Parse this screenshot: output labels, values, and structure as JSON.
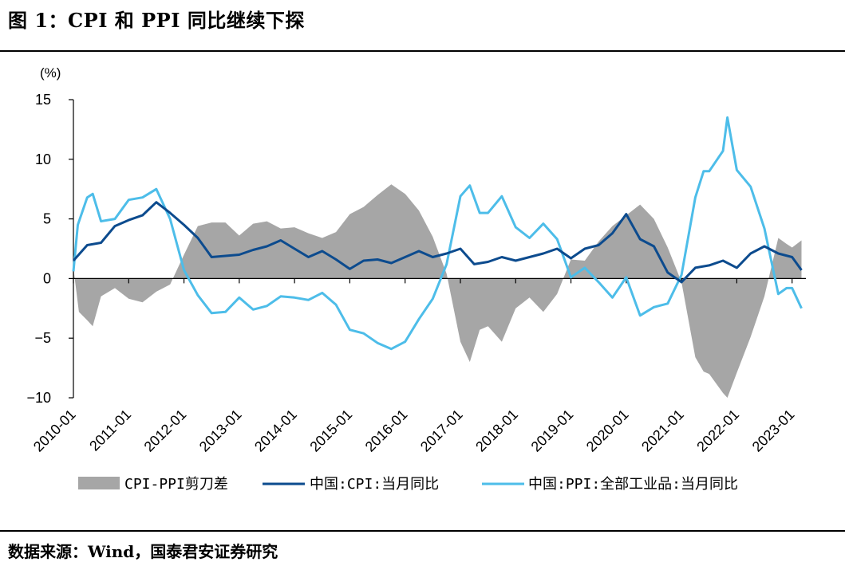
{
  "figure_title": "图 1：CPI 和 PPI 同比继续下探",
  "source_note": "数据来源：Wind，国泰君安证券研究",
  "colors": {
    "spread": "#a6a6a6",
    "cpi": "#0c4b8e",
    "ppi": "#4dbde9",
    "axis": "#000000"
  },
  "chart_data": {
    "type": "line",
    "title": "CPI 和 PPI 同比继续下探",
    "ylabel": "(%)",
    "ylim": [
      -10,
      15
    ],
    "yticks": [
      15,
      10,
      5,
      0,
      -5,
      -10
    ],
    "ytick_labels": [
      "15",
      "10",
      "5",
      "0",
      "−5",
      "−10"
    ],
    "xlim": [
      2010.0,
      2023.25
    ],
    "xticks": [
      2010,
      2011,
      2012,
      2013,
      2014,
      2015,
      2016,
      2017,
      2018,
      2019,
      2020,
      2021,
      2022,
      2023
    ],
    "xtick_labels": [
      "2010-01",
      "2011-01",
      "2012-01",
      "2013-01",
      "2014-01",
      "2015-01",
      "2016-01",
      "2017-01",
      "2018-01",
      "2019-01",
      "2020-01",
      "2021-01",
      "2022-01",
      "2023-01"
    ],
    "legend": [
      "CPI-PPI剪刀差",
      "中国:CPI:当月同比",
      "中国:PPI:全部工业品:当月同比"
    ],
    "series": [
      {
        "name": "中国:CPI:当月同比",
        "x": [
          2010.0,
          2010.25,
          2010.5,
          2010.75,
          2011.0,
          2011.25,
          2011.5,
          2011.75,
          2012.0,
          2012.25,
          2012.5,
          2012.75,
          2013.0,
          2013.25,
          2013.5,
          2013.75,
          2014.0,
          2014.25,
          2014.5,
          2014.75,
          2015.0,
          2015.25,
          2015.5,
          2015.75,
          2016.0,
          2016.25,
          2016.5,
          2016.75,
          2017.0,
          2017.25,
          2017.5,
          2017.75,
          2018.0,
          2018.25,
          2018.5,
          2018.75,
          2019.0,
          2019.25,
          2019.5,
          2019.75,
          2020.0,
          2020.25,
          2020.5,
          2020.75,
          2021.0,
          2021.25,
          2021.5,
          2021.75,
          2022.0,
          2022.25,
          2022.5,
          2022.75,
          2023.0,
          2023.17
        ],
        "values": [
          1.5,
          2.8,
          3.0,
          4.4,
          4.9,
          5.3,
          6.4,
          5.5,
          4.5,
          3.4,
          1.8,
          1.9,
          2.0,
          2.4,
          2.7,
          3.2,
          2.5,
          1.8,
          2.3,
          1.6,
          0.8,
          1.5,
          1.6,
          1.3,
          1.8,
          2.3,
          1.8,
          2.1,
          2.5,
          1.2,
          1.4,
          1.8,
          1.5,
          1.8,
          2.1,
          2.5,
          1.7,
          2.5,
          2.8,
          3.8,
          5.4,
          3.3,
          2.7,
          0.5,
          -0.3,
          0.9,
          1.1,
          1.5,
          0.9,
          2.1,
          2.7,
          2.1,
          1.8,
          0.7
        ]
      },
      {
        "name": "中国:PPI:全部工业品:当月同比",
        "x": [
          2010.0,
          2010.08,
          2010.25,
          2010.35,
          2010.5,
          2010.75,
          2011.0,
          2011.25,
          2011.5,
          2011.75,
          2012.0,
          2012.25,
          2012.5,
          2012.75,
          2013.0,
          2013.25,
          2013.5,
          2013.75,
          2014.0,
          2014.25,
          2014.5,
          2014.75,
          2015.0,
          2015.25,
          2015.5,
          2015.75,
          2016.0,
          2016.25,
          2016.5,
          2016.75,
          2017.0,
          2017.17,
          2017.35,
          2017.5,
          2017.75,
          2018.0,
          2018.25,
          2018.5,
          2018.75,
          2019.0,
          2019.25,
          2019.5,
          2019.75,
          2020.0,
          2020.25,
          2020.5,
          2020.75,
          2021.0,
          2021.25,
          2021.4,
          2021.5,
          2021.75,
          2021.83,
          2022.0,
          2022.25,
          2022.5,
          2022.75,
          2022.9,
          2023.0,
          2023.17
        ],
        "values": [
          0.6,
          4.5,
          6.8,
          7.1,
          4.8,
          5.0,
          6.6,
          6.8,
          7.5,
          5.0,
          0.7,
          -1.4,
          -2.9,
          -2.8,
          -1.6,
          -2.6,
          -2.3,
          -1.5,
          -1.6,
          -1.8,
          -1.2,
          -2.2,
          -4.3,
          -4.6,
          -5.4,
          -5.9,
          -5.3,
          -3.4,
          -1.7,
          1.2,
          6.9,
          7.8,
          5.5,
          5.5,
          6.9,
          4.3,
          3.4,
          4.6,
          3.3,
          0.1,
          0.9,
          -0.3,
          -1.6,
          0.1,
          -3.1,
          -2.4,
          -2.1,
          0.3,
          6.8,
          9.0,
          9.0,
          10.7,
          13.5,
          9.1,
          7.7,
          4.2,
          -1.3,
          -0.8,
          -0.8,
          -2.5
        ]
      },
      {
        "name": "CPI-PPI剪刀差",
        "x": [
          2010.0,
          2010.1,
          2010.25,
          2010.35,
          2010.5,
          2010.75,
          2011.0,
          2011.25,
          2011.5,
          2011.75,
          2012.0,
          2012.25,
          2012.5,
          2012.75,
          2013.0,
          2013.25,
          2013.5,
          2013.75,
          2014.0,
          2014.25,
          2014.5,
          2014.75,
          2015.0,
          2015.25,
          2015.5,
          2015.75,
          2016.0,
          2016.25,
          2016.5,
          2016.75,
          2017.0,
          2017.17,
          2017.35,
          2017.5,
          2017.75,
          2018.0,
          2018.25,
          2018.5,
          2018.75,
          2019.0,
          2019.25,
          2019.5,
          2019.75,
          2020.0,
          2020.25,
          2020.5,
          2020.75,
          2021.0,
          2021.25,
          2021.4,
          2021.5,
          2021.75,
          2021.83,
          2022.0,
          2022.25,
          2022.5,
          2022.75,
          2022.9,
          2023.0,
          2023.17
        ],
        "values": [
          0.9,
          -2.8,
          -3.5,
          -4.0,
          -1.5,
          -0.8,
          -1.7,
          -2.0,
          -1.1,
          -0.5,
          2.0,
          4.4,
          4.7,
          4.7,
          3.6,
          4.6,
          4.8,
          4.2,
          4.3,
          3.8,
          3.4,
          3.9,
          5.4,
          6.0,
          7.0,
          7.9,
          7.1,
          5.7,
          3.5,
          0.4,
          -5.3,
          -7.0,
          -4.3,
          -4.0,
          -5.3,
          -2.5,
          -1.6,
          -2.8,
          -1.3,
          1.6,
          1.5,
          3.1,
          4.4,
          5.3,
          6.2,
          5.0,
          2.6,
          -0.3,
          -6.6,
          -7.8,
          -8.0,
          -9.6,
          -10.0,
          -7.9,
          -4.9,
          -1.5,
          3.4,
          2.9,
          2.6,
          3.2
        ]
      }
    ]
  }
}
